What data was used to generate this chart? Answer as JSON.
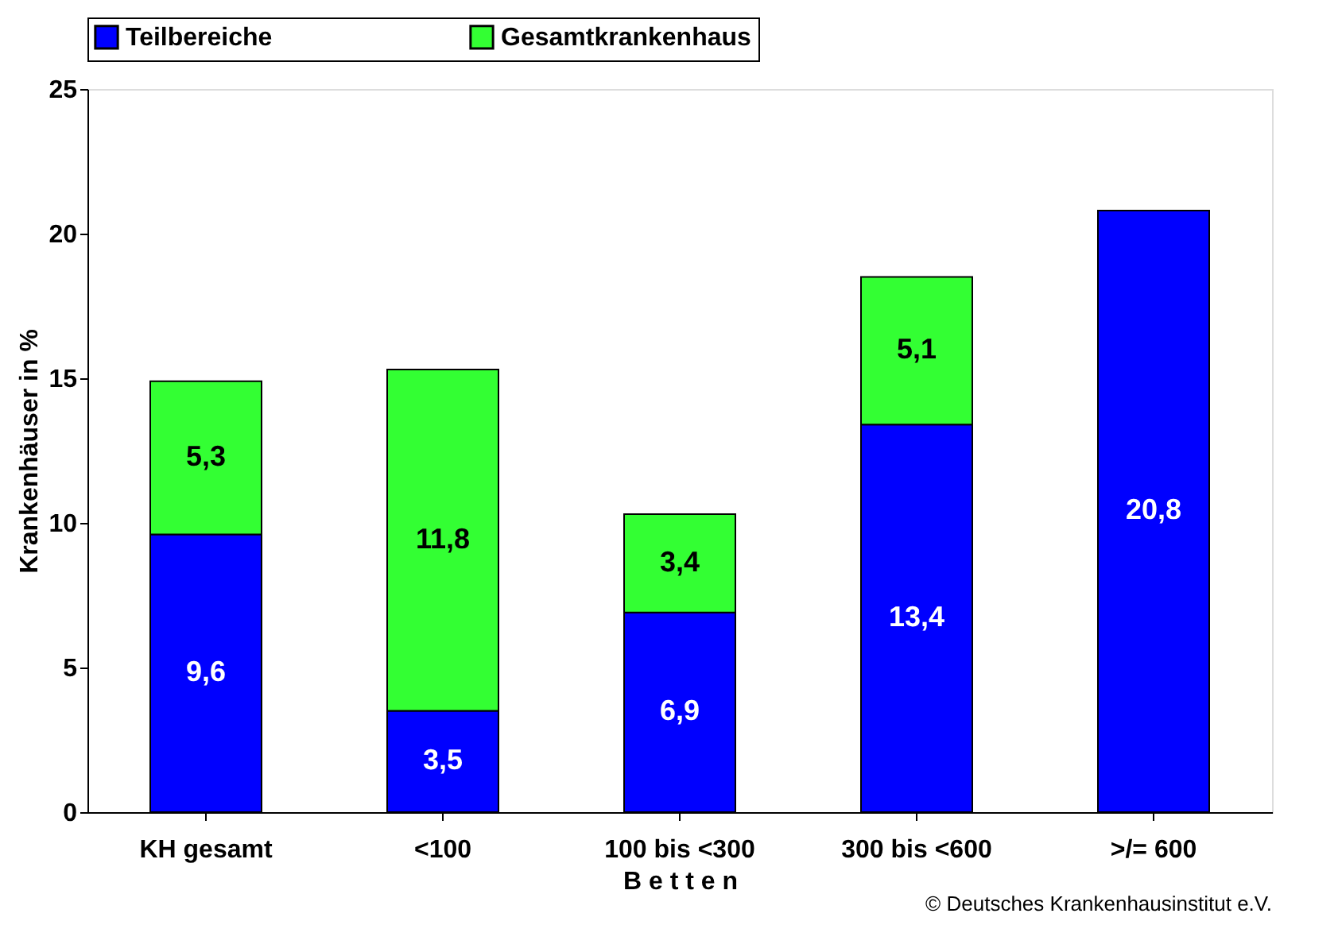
{
  "chart_data": {
    "type": "bar",
    "stacked": true,
    "ylabel": "Krankenhäuser in %",
    "xlabel": "B e t t e n",
    "categories": [
      "KH gesamt",
      "<100",
      "100 bis <300",
      "300 bis <600",
      ">/= 600"
    ],
    "series": [
      {
        "name": "Teilbereiche",
        "color": "#0000ff",
        "values": [
          9.6,
          3.5,
          6.9,
          13.4,
          20.8
        ],
        "value_labels": [
          "9,6",
          "3,5",
          "6,9",
          "13,4",
          "20,8"
        ]
      },
      {
        "name": "Gesamtkrankenhaus",
        "color": "#33ff33",
        "values": [
          5.3,
          11.8,
          3.4,
          5.1,
          null
        ],
        "value_labels": [
          "5,3",
          "11,8",
          "3,4",
          "5,1",
          null
        ]
      }
    ],
    "ylim": [
      0,
      25
    ],
    "yticks": [
      0,
      5,
      10,
      15,
      20,
      25
    ],
    "grid": false,
    "legend": "top",
    "annotations": [
      "© Deutsches Krankenhausinstitut e.V."
    ]
  }
}
